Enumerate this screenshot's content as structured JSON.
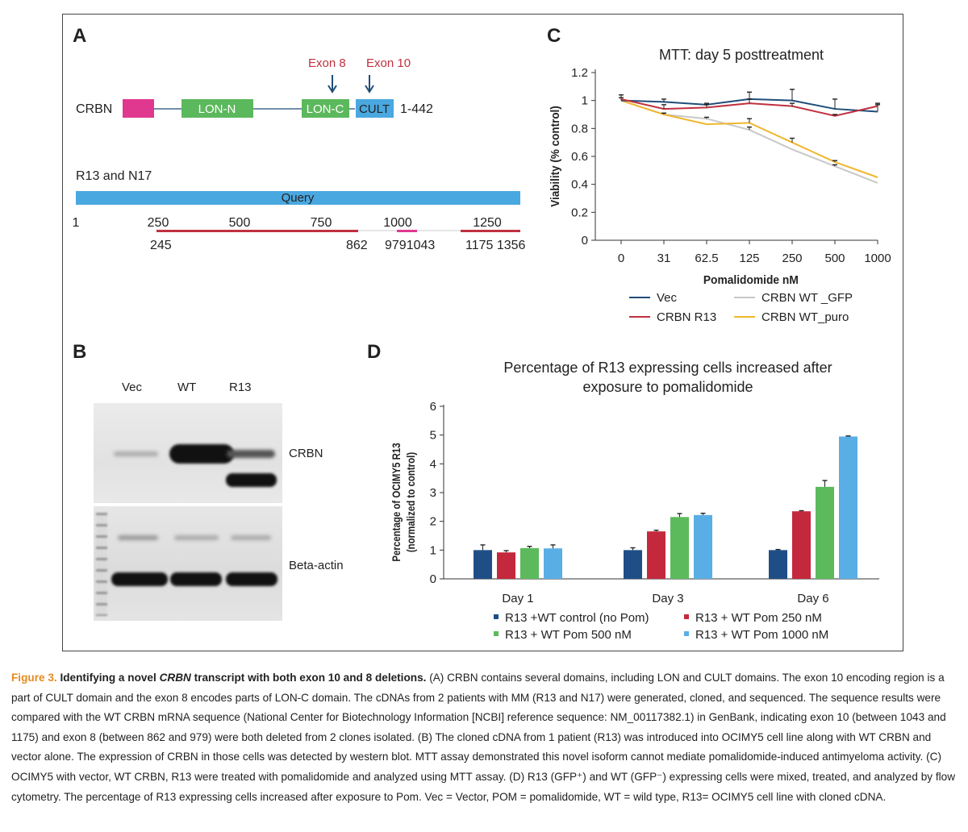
{
  "panels": {
    "a": "A",
    "b": "B",
    "c": "C",
    "d": "D"
  },
  "panel_a": {
    "gene": "CRBN",
    "exon8": "Exon 8",
    "exon10": "Exon 10",
    "domains": {
      "lon_n": "LON-N",
      "lon_c": "LON-C",
      "cult": "CULT"
    },
    "range": "1-442",
    "clones_label": "R13 and N17",
    "query_label": "Query",
    "scale": [
      "1",
      "250",
      "500",
      "750",
      "1000",
      "1250"
    ],
    "segments": [
      "245",
      "862",
      "9791043",
      "1175 1356"
    ]
  },
  "panel_b": {
    "lanes": [
      "Vec",
      "WT",
      "R13"
    ],
    "labels": {
      "crbn": "CRBN",
      "actin": "Beta-actin"
    }
  },
  "colors": {
    "magenta": "#e0388f",
    "green": "#5cb85c",
    "blue": "#4aa8e0",
    "navy": "#1f4e79",
    "red": "#c0303f",
    "grey": "#c8c8c8",
    "yellow": "#efb72e",
    "d_navy": "#1f4e87",
    "d_red": "#c4283c",
    "d_green": "#5cba5c",
    "d_light": "#5aaee6",
    "caption_orange": "#e58a1f"
  },
  "chart_data": [
    {
      "type": "line",
      "title": "MTT:  day 5  posttreatment",
      "xlabel": "Pomalidomide nM",
      "ylabel": "Viability (% control)",
      "categories": [
        "0",
        "31",
        "62.5",
        "125",
        "250",
        "500",
        "1000"
      ],
      "y_ticks": [
        "0",
        "0.2",
        "0.4",
        "0.6",
        "0.8",
        "1",
        "1.2"
      ],
      "ylim": [
        0,
        1.2
      ],
      "series": [
        {
          "name": "Vec",
          "color": "#1f4e79",
          "values": [
            1.0,
            0.99,
            0.97,
            1.01,
            1.0,
            0.94,
            0.92
          ],
          "err": [
            0.02,
            0.02,
            0.01,
            0.05,
            0.08,
            0.07,
            0.05
          ]
        },
        {
          "name": "CRBN WT _GFP",
          "color": "#c8c8c8",
          "values": [
            1.0,
            0.9,
            0.87,
            0.79,
            0.65,
            0.53,
            0.41
          ],
          "err": [
            0,
            0,
            0.01,
            0.02,
            0,
            0.01,
            0
          ]
        },
        {
          "name": "CRBN R13",
          "color": "#c0303f",
          "values": [
            1.01,
            0.94,
            0.95,
            0.98,
            0.96,
            0.89,
            0.96
          ],
          "err": [
            0.03,
            0.03,
            0.02,
            0.03,
            0.02,
            0.01,
            0.02
          ]
        },
        {
          "name": "CRBN  WT_puro",
          "color": "#efb72e",
          "values": [
            1.0,
            0.9,
            0.83,
            0.84,
            0.7,
            0.56,
            0.45
          ],
          "err": [
            0,
            0.01,
            0,
            0.03,
            0.03,
            0.01,
            0
          ]
        }
      ],
      "legend_order": [
        "Vec",
        "CRBN WT _GFP",
        "CRBN R13",
        "CRBN  WT_puro"
      ]
    },
    {
      "type": "bar",
      "title": [
        "Percentage of R13 expressing cells increased after",
        "exposure to pomalidomide"
      ],
      "ylabel": [
        "Percentage of  OCIMY5 R13",
        "(normalized to control)"
      ],
      "categories": [
        "Day 1",
        "Day 3",
        "Day 6"
      ],
      "y_ticks": [
        "0",
        "1",
        "2",
        "3",
        "4",
        "5",
        "6"
      ],
      "ylim": [
        0,
        6
      ],
      "series": [
        {
          "name": "R13  +WT control (no Pom)",
          "color": "#1f4e87",
          "values": [
            1.0,
            1.0,
            1.0
          ],
          "err": [
            0.18,
            0.08,
            0.02
          ]
        },
        {
          "name": "R13 + WT Pom 250 nM",
          "color": "#c4283c",
          "values": [
            0.92,
            1.65,
            2.35
          ],
          "err": [
            0.06,
            0.04,
            0.02
          ]
        },
        {
          "name": "R13 + WT Pom 500 nM",
          "color": "#5cba5c",
          "values": [
            1.07,
            2.15,
            3.2
          ],
          "err": [
            0.06,
            0.12,
            0.22
          ]
        },
        {
          "name": "R13 + WT Pom 1000 nM",
          "color": "#5aaee6",
          "values": [
            1.06,
            2.22,
            4.95
          ],
          "err": [
            0.12,
            0.06,
            0.02
          ]
        }
      ]
    }
  ],
  "caption": {
    "label": "Figure 3.",
    "title_a": "Identifying a novel",
    "title_gene": "CRBN",
    "title_b": "transcript with both exon 10 and 8 deletions.",
    "body": "(A) CRBN contains several domains, including LON and CULT domains. The exon 10 encoding region is a part of CULT domain and the exon 8 encodes parts of LON-C domain. The cDNAs from 2 patients with MM (R13 and N17) were generated, cloned, and sequenced. The sequence results were compared with the WT CRBN mRNA sequence (National Center for Biotechnology Information [NCBI] reference sequence: NM_00117382.1) in GenBank, indicating exon 10 (between 1043 and 1175) and exon 8 (between 862 and 979) were both deleted from 2 clones isolated. (B) The cloned cDNA from 1 patient (R13) was introduced into OCIMY5 cell line along with WT CRBN and vector alone. The expression of CRBN in those cells was detected by western blot. MTT assay demonstrated this novel isoform cannot mediate pomalidomide-induced antimyeloma activity. (C) OCIMY5 with vector, WT CRBN, R13 were treated with pomalidomide and analyzed using MTT assay. (D) R13 (GFP⁺) and WT (GFP⁻) expressing cells were mixed, treated, and analyzed by flow cytometry. The percentage of R13 expressing cells increased after exposure to Pom. Vec = Vector, POM = pomalidomide, WT = wild type, R13= OCIMY5 cell line with cloned cDNA."
  }
}
